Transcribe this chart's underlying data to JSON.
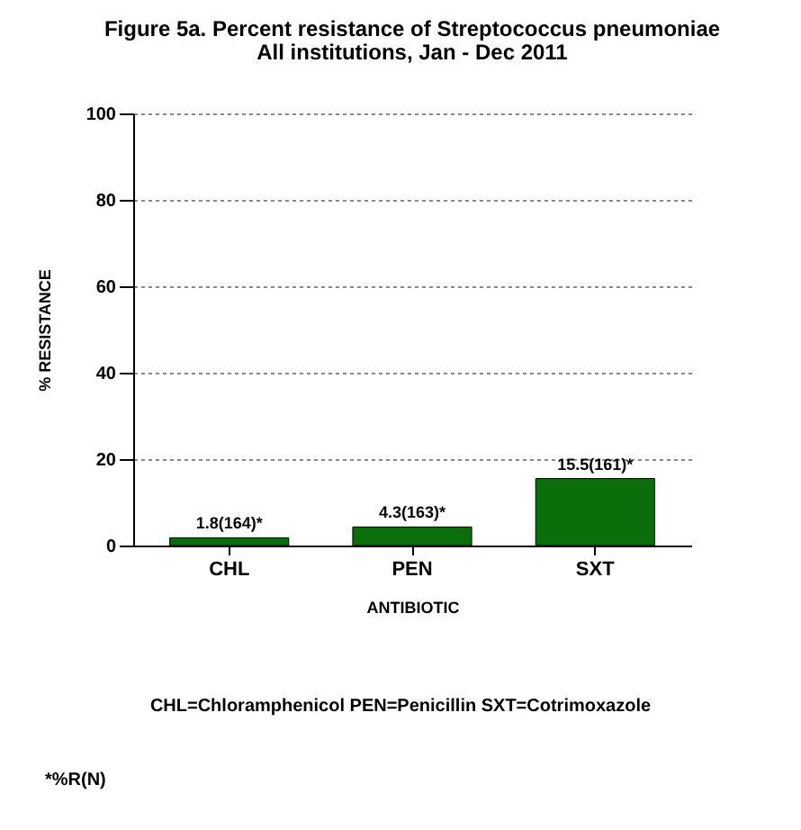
{
  "chart_data": {
    "type": "bar",
    "title": "Figure 5a. Percent resistance of Streptococcus pneumoniae",
    "subtitle": "All institutions, Jan - Dec 2011",
    "xlabel": "ANTIBIOTIC",
    "ylabel": "% RESISTANCE",
    "categories": [
      "CHL",
      "PEN",
      "SXT"
    ],
    "values": [
      1.8,
      4.3,
      15.5
    ],
    "color": "#0a6e0a",
    "value_labels": [
      "1.8(164)*",
      "4.3(163)*",
      "15.5(161)*"
    ],
    "ylim": [
      0,
      100
    ],
    "yticks": [
      0,
      20,
      40,
      60,
      80,
      100
    ],
    "grid": "y",
    "annotations": [
      "CHL=Chloramphenicol  PEN=Penicillin  SXT=Cotrimoxazole",
      "*%R(N)"
    ]
  }
}
